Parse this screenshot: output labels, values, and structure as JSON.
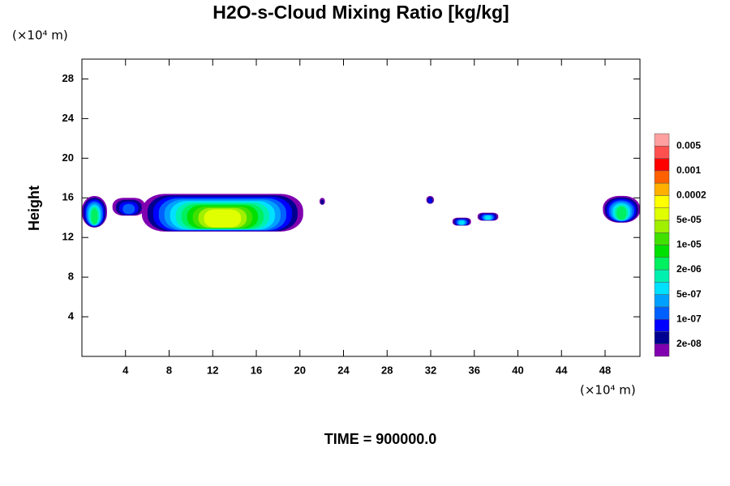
{
  "chart_data": {
    "type": "contour",
    "title": "H2O-s-Cloud Mixing Ratio [kg/kg]",
    "y_unit": "(×10⁴ m)",
    "x_unit": "(×10⁴ m)",
    "ylabel": "Height",
    "footer": "TIME = 900000.0",
    "xlim": [
      0,
      51.2
    ],
    "ylim": [
      0,
      30
    ],
    "xticks": [
      4,
      8,
      12,
      16,
      20,
      24,
      28,
      32,
      36,
      40,
      44,
      48
    ],
    "yticks": [
      4,
      8,
      12,
      16,
      20,
      24,
      28
    ],
    "colorbar_colors": [
      "#8000b0",
      "#000090",
      "#0000ff",
      "#0060ff",
      "#00a0ff",
      "#00e0ff",
      "#00f0b0",
      "#00f060",
      "#00e000",
      "#40e000",
      "#a0f000",
      "#e0ff00",
      "#ffff00",
      "#ffb000",
      "#ff6000",
      "#ff0000",
      "#ff5050",
      "#ffa0a0"
    ],
    "colorbar_ticks": [
      {
        "value": 2e-08,
        "label": "2e-08"
      },
      {
        "value": 1e-07,
        "label": "1e-07"
      },
      {
        "value": 5e-07,
        "label": "5e-07"
      },
      {
        "value": 2e-06,
        "label": "2e-06"
      },
      {
        "value": 1e-05,
        "label": "1e-05"
      },
      {
        "value": 5e-05,
        "label": "5e-05"
      },
      0.0002,
      0.001,
      0.005
    ],
    "clouds": [
      {
        "x": [
          0,
          2.3
        ],
        "y": [
          13,
          16.2
        ],
        "peak": 3e-06
      },
      {
        "x": [
          2.8,
          5.8
        ],
        "y": [
          14.2,
          16.0
        ],
        "peak": 2e-07
      },
      {
        "x": [
          5.5,
          20.3
        ],
        "y": [
          12.6,
          16.4
        ],
        "peak": 5e-05
      },
      {
        "x": [
          21.8,
          22.3
        ],
        "y": [
          15.3,
          16.0
        ],
        "peak": 3e-08
      },
      {
        "x": [
          31.6,
          32.3
        ],
        "y": [
          15.4,
          16.2
        ],
        "peak": 6e-08
      },
      {
        "x": [
          34.0,
          35.7
        ],
        "y": [
          13.2,
          14.0
        ],
        "peak": 6e-07
      },
      {
        "x": [
          36.3,
          38.2
        ],
        "y": [
          13.7,
          14.5
        ],
        "peak": 6e-07
      },
      {
        "x": [
          47.8,
          51.2
        ],
        "y": [
          13.5,
          16.2
        ],
        "peak": 3e-06
      }
    ]
  }
}
